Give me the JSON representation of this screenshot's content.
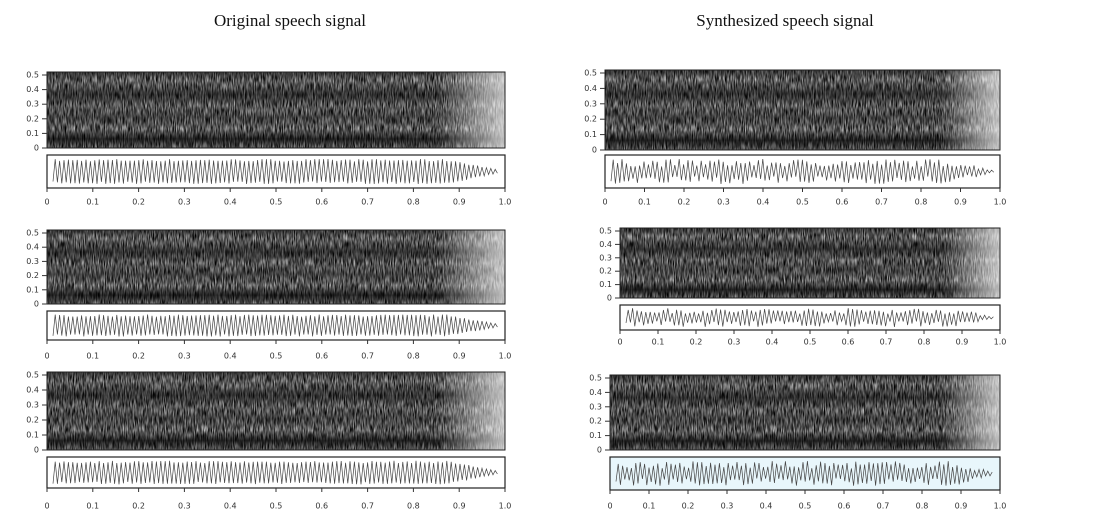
{
  "columns": [
    {
      "title": "Original speech signal",
      "panels": [
        {
          "yticks": [
            "0.5",
            "0.4",
            "0.3",
            "0.2",
            "0.1",
            "0"
          ],
          "xticks": [
            "0",
            "0.1",
            "0.2",
            "0.3",
            "0.4",
            "0.5",
            "0.6",
            "0.7",
            "0.8",
            "0.9",
            "1.0"
          ]
        },
        {
          "yticks": [
            "0.5",
            "0.4",
            "0.3",
            "0.2",
            "0.1",
            "0"
          ],
          "xticks": [
            "0",
            "0.1",
            "0.2",
            "0.3",
            "0.4",
            "0.5",
            "0.6",
            "0.7",
            "0.8",
            "0.9",
            "1.0"
          ]
        },
        {
          "yticks": [
            "0.5",
            "0.4",
            "0.3",
            "0.2",
            "0.1",
            "0"
          ],
          "xticks": [
            "0",
            "0.1",
            "0.2",
            "0.3",
            "0.4",
            "0.5",
            "0.6",
            "0.7",
            "0.8",
            "0.9",
            "1.0"
          ]
        }
      ]
    },
    {
      "title": "Synthesized speech signal",
      "panels": [
        {
          "yticks": [
            "0.5",
            "0.4",
            "0.3",
            "0.2",
            "0.1",
            "0"
          ],
          "xticks": [
            "0",
            "0.1",
            "0.2",
            "0.3",
            "0.4",
            "0.5",
            "0.6",
            "0.7",
            "0.8",
            "0.9",
            "1.0"
          ]
        },
        {
          "yticks": [
            "0.5",
            "0.4",
            "0.3",
            "0.2",
            "0.1",
            "0"
          ],
          "xticks": [
            "0",
            "0.1",
            "0.2",
            "0.3",
            "0.4",
            "0.5",
            "0.6",
            "0.7",
            "0.8",
            "0.9",
            "1.0"
          ]
        },
        {
          "yticks": [
            "0.5",
            "0.4",
            "0.3",
            "0.2",
            "0.1",
            "0"
          ],
          "xticks": [
            "0",
            "0.1",
            "0.2",
            "0.3",
            "0.4",
            "0.5",
            "0.6",
            "0.7",
            "0.8",
            "0.9",
            "1.0"
          ]
        }
      ]
    }
  ]
}
